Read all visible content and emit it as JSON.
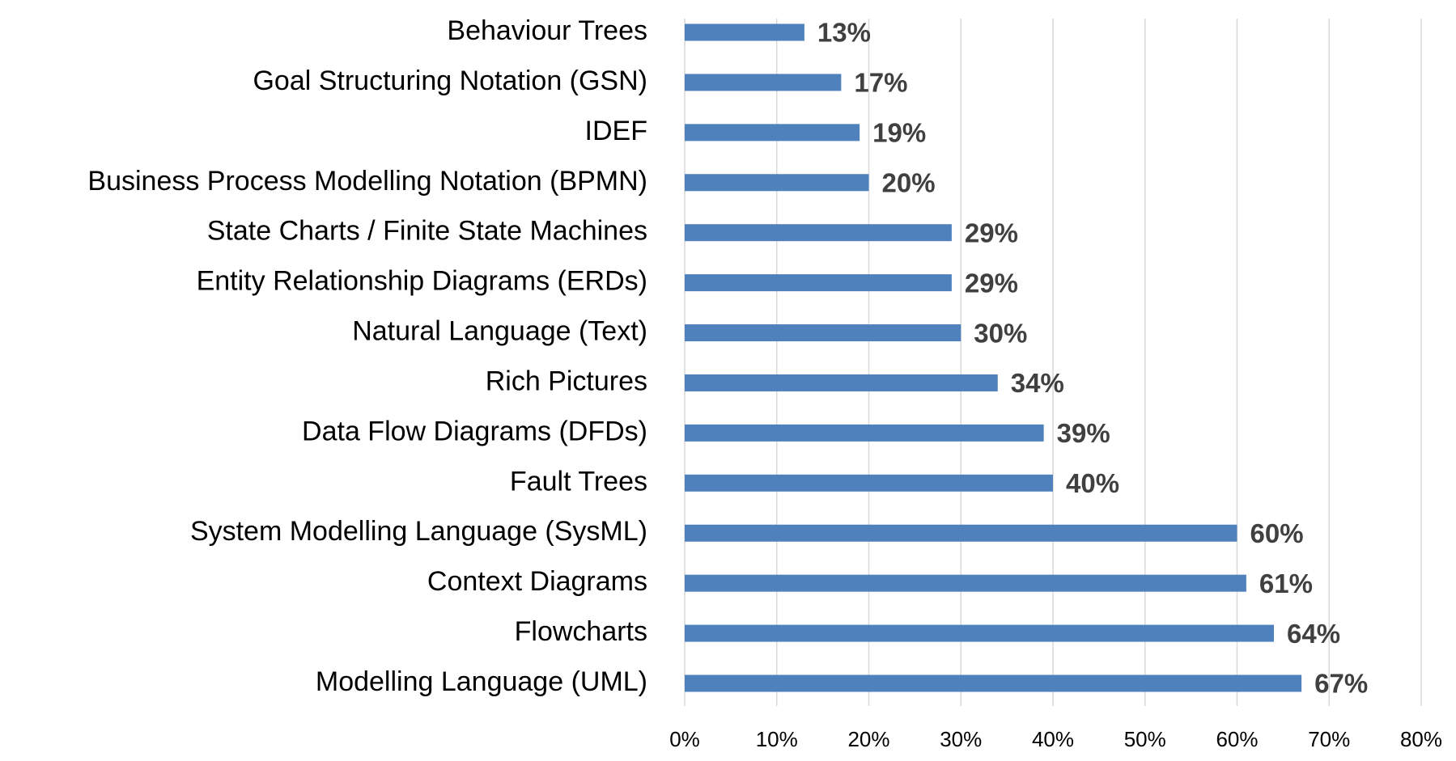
{
  "chart_data": {
    "type": "bar",
    "orientation": "horizontal",
    "categories": [
      "Behaviour Trees",
      "Goal Structuring Notation (GSN)",
      "IDEF",
      "Business Process Modelling Notation (BPMN)",
      "State Charts / Finite State Machines",
      "Entity Relationship Diagrams (ERDs)",
      "Natural Language (Text)",
      "Rich Pictures",
      "Data Flow Diagrams (DFDs)",
      "Fault Trees",
      "System Modelling Language (SysML)",
      "Context Diagrams",
      "Flowcharts",
      "Modelling Language (UML)"
    ],
    "values": [
      13,
      17,
      19,
      20,
      29,
      29,
      30,
      34,
      39,
      40,
      60,
      61,
      64,
      67
    ],
    "value_labels": [
      "13%",
      "17%",
      "19%",
      "20%",
      "29%",
      "29%",
      "30%",
      "34%",
      "39%",
      "40%",
      "60%",
      "61%",
      "64%",
      "67%"
    ],
    "color": "#4f81bd",
    "xlim": [
      0,
      80
    ],
    "xticks": [
      {
        "value": 0,
        "label": "0%"
      },
      {
        "value": 10,
        "label": "10%"
      },
      {
        "value": 20,
        "label": "20%"
      },
      {
        "value": 30,
        "label": "30%"
      },
      {
        "value": 40,
        "label": "40%"
      },
      {
        "value": 50,
        "label": "50%"
      },
      {
        "value": 60,
        "label": "60%"
      },
      {
        "value": 70,
        "label": "70%"
      },
      {
        "value": 80,
        "label": "80%"
      }
    ],
    "grid": true
  }
}
